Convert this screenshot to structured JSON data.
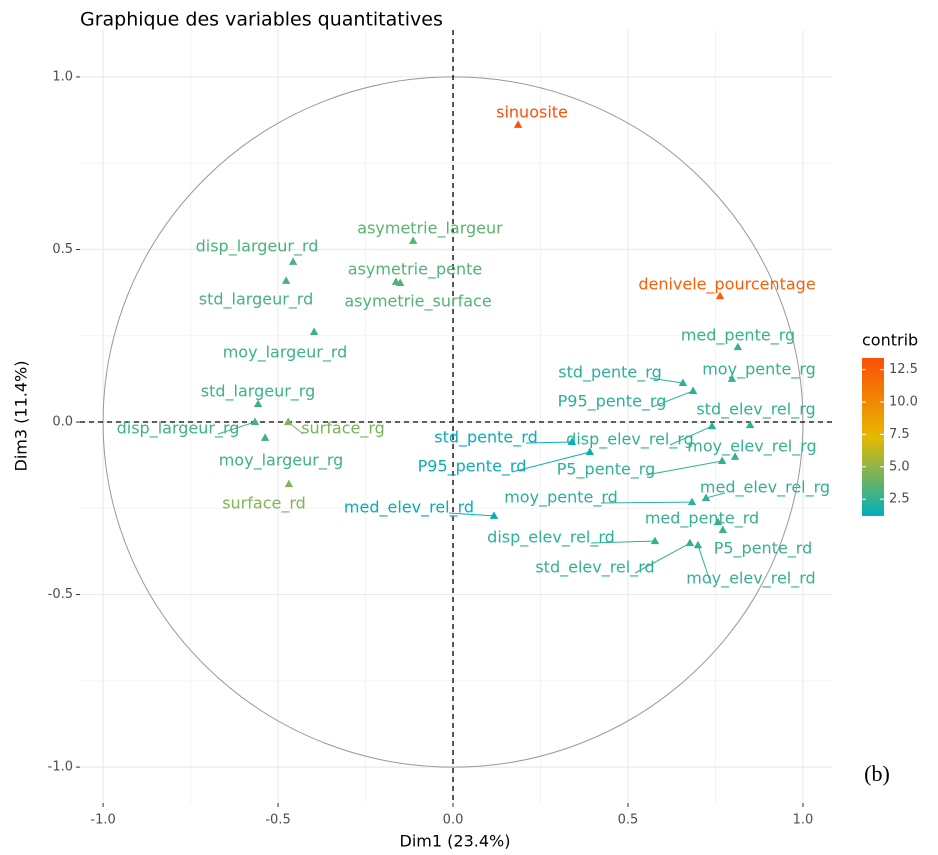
{
  "chart_data": {
    "type": "scatter",
    "title": "Graphique des variables quantitatives",
    "xlabel": "Dim1 (23.4%)",
    "ylabel": "Dim3 (11.4%)",
    "xlim": [
      -1.066,
      1.083
    ],
    "ylim": [
      -1.104,
      1.136
    ],
    "xticks": [
      {
        "value": -1,
        "label": "-1.0"
      },
      -0.5,
      {
        "value": 0,
        "label": "0.0"
      },
      0.5,
      {
        "value": 1,
        "label": "1.0"
      }
    ],
    "yticks": [
      {
        "value": -1,
        "label": "-1.0"
      },
      -0.5,
      {
        "value": 0,
        "label": "0.0"
      },
      0.5,
      {
        "value": 1,
        "label": "1.0"
      }
    ],
    "grid": true,
    "annotation": "(b)",
    "color_scale": {
      "title": "contrib",
      "colors": [
        "#00AFBB",
        "#E7B800",
        "#FC4E07"
      ],
      "lim": [
        1.2,
        13.4
      ],
      "ticks": [
        2.5,
        {
          "value": 5,
          "label": "5.0"
        },
        7.5,
        {
          "value": 10,
          "label": "10.0"
        },
        12.5
      ]
    },
    "labels": [
      "sinuosite",
      "denivele_pourcentage",
      "asymetrie_largeur",
      "disp_largeur_rd",
      "asymetrie_pente",
      "asymetrie_surface",
      "std_largeur_rd",
      "moy_largeur_rd",
      "med_pente_rg",
      "moy_pente_rg",
      "std_pente_rg",
      "P95_pente_rg",
      "std_elev_rel_rg",
      "disp_elev_rel_rg",
      "moy_elev_rel_rg",
      "P5_pente_rg",
      "std_pente_rd",
      "P95_pente_rd",
      "std_largeur_rg",
      "disp_largeur_rg",
      "surface_rg",
      "moy_largeur_rg",
      "surface_rd",
      "med_elev_rel_rd",
      "moy_pente_rd",
      "med_elev_rel_rg",
      "med_pente_rd",
      "P5_pente_rd",
      "disp_elev_rel_rd",
      "std_elev_rel_rd",
      "moy_elev_rel_rd"
    ],
    "x": [
      0.186,
      0.763,
      -0.114,
      -0.457,
      -0.163,
      -0.151,
      -0.477,
      -0.397,
      0.814,
      0.797,
      0.657,
      0.686,
      0.849,
      0.74,
      0.806,
      0.769,
      0.34,
      0.391,
      -0.557,
      -0.566,
      -0.471,
      -0.537,
      -0.469,
      0.117,
      0.683,
      0.723,
      0.757,
      0.771,
      0.577,
      0.677,
      0.7
    ],
    "y": [
      0.861,
      0.365,
      0.525,
      0.464,
      0.406,
      0.403,
      0.409,
      0.261,
      0.217,
      0.125,
      0.113,
      0.09,
      -0.009,
      -0.012,
      -0.101,
      -0.113,
      -0.058,
      -0.087,
      0.052,
      0.0,
      0.0,
      -0.046,
      -0.18,
      -0.272,
      -0.232,
      -0.22,
      -0.29,
      -0.313,
      -0.345,
      -0.351,
      -0.357
    ],
    "contrib": [
      13.3,
      12.4,
      3.6,
      3.2,
      3.4,
      3.4,
      3.0,
      2.8,
      2.6,
      2.6,
      2.3,
      2.3,
      2.5,
      2.4,
      2.6,
      2.5,
      1.4,
      1.5,
      2.8,
      2.9,
      4.4,
      2.8,
      4.6,
      1.3,
      2.3,
      2.5,
      2.6,
      2.7,
      2.3,
      2.5,
      2.6
    ]
  }
}
